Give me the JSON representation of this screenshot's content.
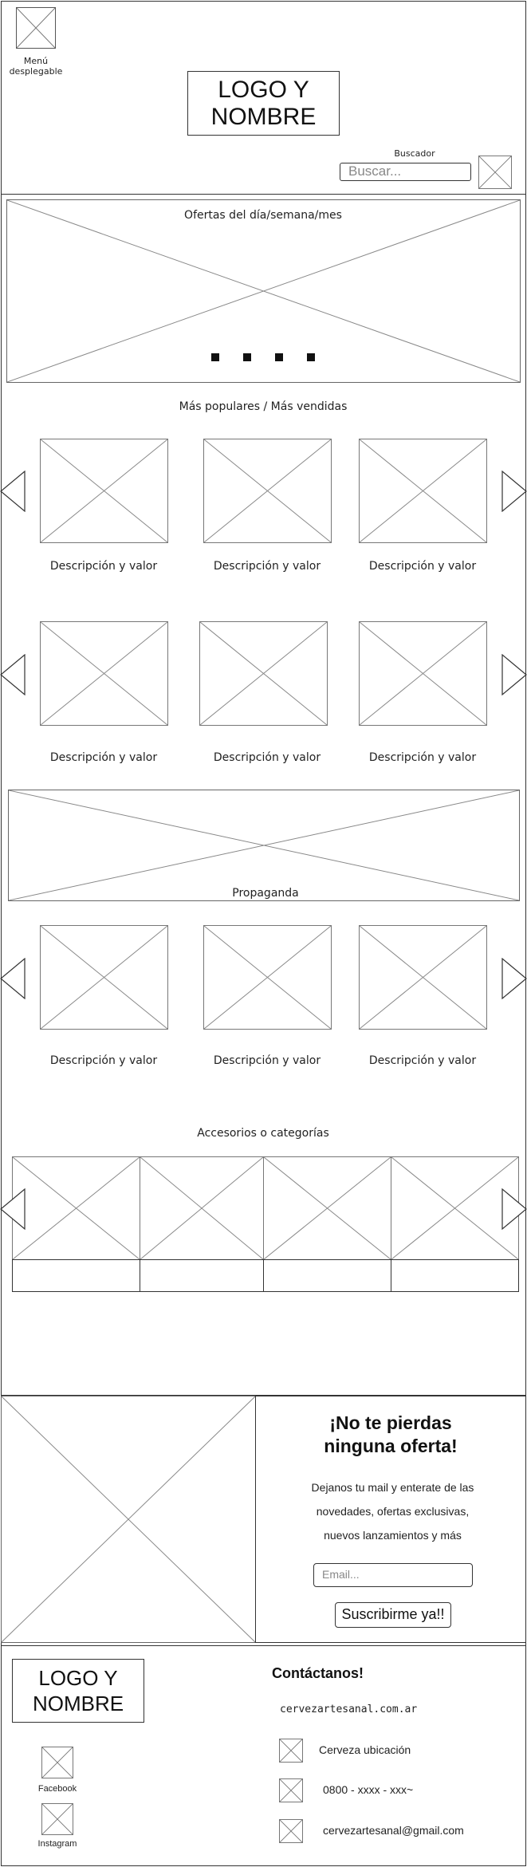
{
  "header": {
    "menu_label": "Menú desplegable",
    "logo_text": "LOGO Y NOMBRE",
    "search_label": "Buscador",
    "search_placeholder": "Buscar..."
  },
  "hero": {
    "title": "Ofertas del día/semana/mes"
  },
  "popular": {
    "title": "Más populares / Más vendidas",
    "row1": [
      "Descripción y valor",
      "Descripción y valor",
      "Descripción y valor"
    ],
    "row2": [
      "Descripción y valor",
      "Descripción y valor",
      "Descripción y valor"
    ]
  },
  "ad": {
    "label": "Propaganda",
    "row3": [
      "Descripción y valor",
      "Descripción y valor",
      "Descripción y valor"
    ]
  },
  "accessories": {
    "title": "Accesorios o categorías"
  },
  "newsletter": {
    "heading": "¡No te pierdas ninguna oferta!",
    "text": "Dejanos tu mail y enterate de las novedades, ofertas exclusivas, nuevos lanzamientos y más",
    "email_placeholder": "Email...",
    "button_label": "Suscribirme ya!!"
  },
  "footer": {
    "logo_text": "LOGO Y NOMBRE",
    "facebook_label": "Facebook",
    "instagram_label": "Instagram",
    "contact_title": "Contáctanos!",
    "website": "cervezartesanal.com.ar",
    "location": "Cerveza ubicación",
    "phone": "0800 - xxxx - xxx~",
    "email": "cervezartesanal@gmail.com"
  }
}
